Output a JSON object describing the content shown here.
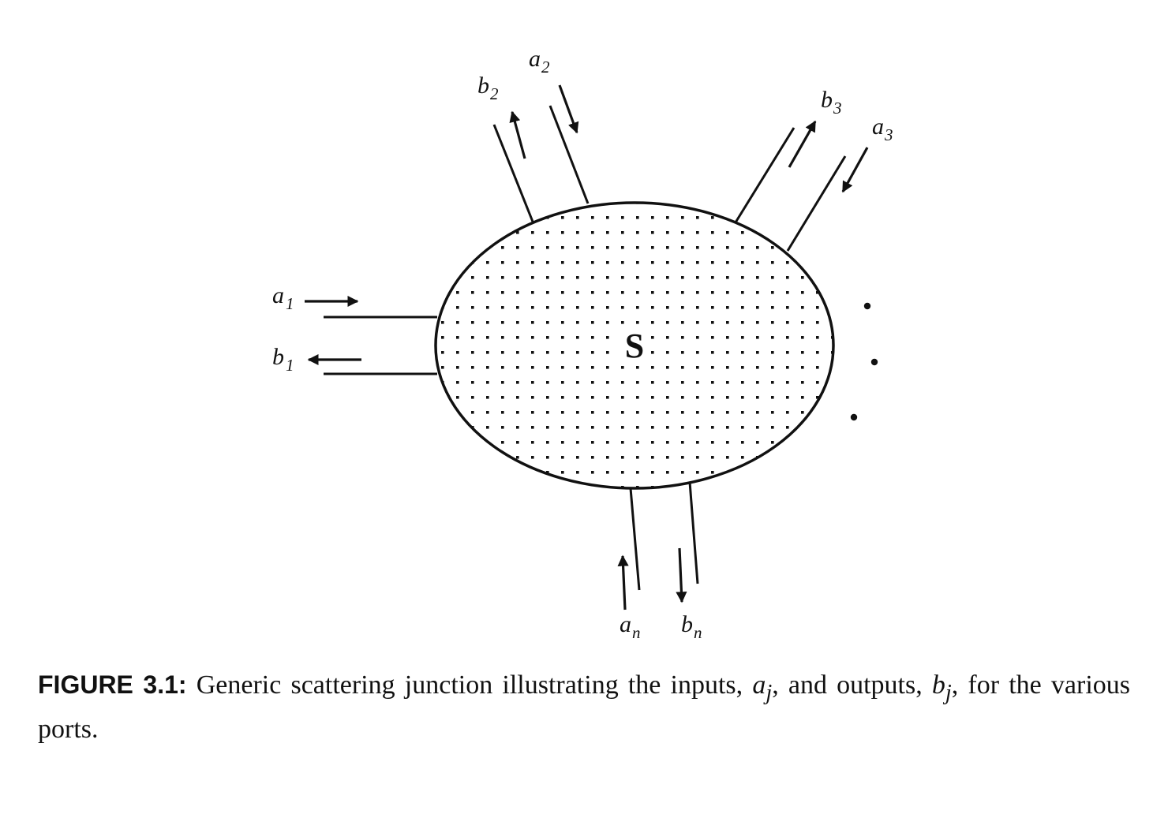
{
  "diagram": {
    "center_label": "S",
    "ports": [
      {
        "id": "1",
        "input": {
          "base": "a",
          "sub": "1"
        },
        "output": {
          "base": "b",
          "sub": "1"
        }
      },
      {
        "id": "2",
        "input": {
          "base": "a",
          "sub": "2"
        },
        "output": {
          "base": "b",
          "sub": "2"
        }
      },
      {
        "id": "3",
        "input": {
          "base": "a",
          "sub": "3"
        },
        "output": {
          "base": "b",
          "sub": "3"
        }
      },
      {
        "id": "n",
        "input": {
          "base": "a",
          "sub": "n"
        },
        "output": {
          "base": "b",
          "sub": "n"
        }
      }
    ],
    "ellipsis": "⋮"
  },
  "caption": {
    "label": "FIGURE 3.1:",
    "text_1": " Generic scattering junction illustrating the inputs, ",
    "math_1": "a",
    "math_1_sub": "j",
    "text_2": ", and outputs, ",
    "math_2": "b",
    "math_2_sub": "j",
    "text_3": ", for the various ports."
  }
}
